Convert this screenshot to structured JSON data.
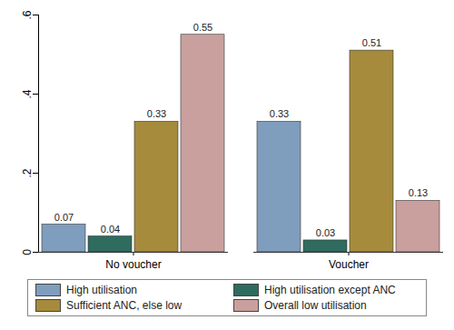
{
  "chart_data": {
    "type": "bar",
    "categories": [
      "No voucher",
      "Voucher"
    ],
    "series": [
      {
        "name": "High utilisation",
        "color": "#7f9dbd",
        "values": [
          0.07,
          0.33
        ]
      },
      {
        "name": "High utilisation except ANC",
        "color": "#2f6b5f",
        "values": [
          0.04,
          0.03
        ]
      },
      {
        "name": "Sufficient ANC, else low",
        "color": "#a58b3b",
        "values": [
          0.33,
          0.51
        ]
      },
      {
        "name": "Overall low utilisation",
        "color": "#c9a09d",
        "values": [
          0.55,
          0.13
        ]
      }
    ],
    "ylim": [
      0,
      0.6
    ],
    "yticks": [
      0,
      {
        "value": 0.2,
        "label": ".2"
      },
      {
        "value": 0.4,
        "label": ".4"
      },
      {
        "value": 0.6,
        "label": ".6"
      }
    ],
    "grid": false,
    "data_labels": true,
    "legend": "bottom"
  }
}
